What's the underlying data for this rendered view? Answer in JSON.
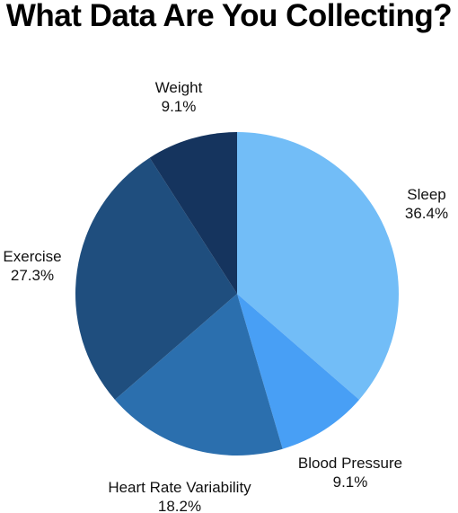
{
  "chart_data": {
    "type": "pie",
    "title": "What Data Are You Collecting?",
    "slices": [
      {
        "label": "Sleep",
        "value": 36.4,
        "pct_label": "36.4%",
        "color": "#72bdf7"
      },
      {
        "label": "Blood Pressure",
        "value": 9.1,
        "pct_label": "9.1%",
        "color": "#489ff5"
      },
      {
        "label": "Heart Rate Variability",
        "value": 18.2,
        "pct_label": "18.2%",
        "color": "#2b6fae"
      },
      {
        "label": "Exercise",
        "value": 27.3,
        "pct_label": "27.3%",
        "color": "#1f4e7e"
      },
      {
        "label": "Weight",
        "value": 9.1,
        "pct_label": "9.1%",
        "color": "#15345e"
      }
    ],
    "start_angle": "12 o'clock",
    "direction": "clockwise",
    "legend": "none"
  }
}
